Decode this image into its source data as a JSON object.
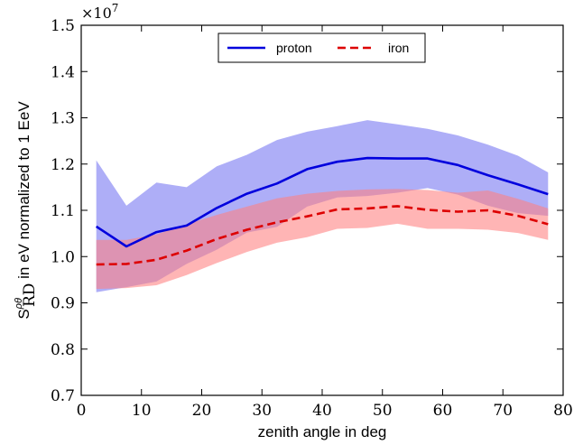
{
  "chart_data": {
    "type": "line",
    "xlabel": "zenith angle in deg",
    "ylabel": {
      "prefix": "S",
      "subscript": "RD",
      "superscript": "ρθ",
      "rest": " in eV normalized to 1 EeV"
    },
    "y_offset_label": "×10^7",
    "xlim": [
      0,
      80
    ],
    "ylim": [
      0.7,
      1.5
    ],
    "xticks": [
      "0",
      "10",
      "20",
      "30",
      "40",
      "50",
      "60",
      "70",
      "80"
    ],
    "yticks": [
      "0.7",
      "0.8",
      "0.9",
      "1.0",
      "1.1",
      "1.2",
      "1.3",
      "1.4",
      "1.5"
    ],
    "legend_position": "top-center",
    "x": [
      2.5,
      7.5,
      12.5,
      17.5,
      22.5,
      27.5,
      32.5,
      37.5,
      42.5,
      47.5,
      52.5,
      57.5,
      62.5,
      67.5,
      72.5,
      77.5
    ],
    "series": [
      {
        "name": "proton",
        "color": "#0000dd",
        "band_color": "#7d7df2",
        "linestyle": "solid",
        "values": [
          1.065,
          1.022,
          1.053,
          1.067,
          1.105,
          1.136,
          1.158,
          1.189,
          1.205,
          1.213,
          1.212,
          1.212,
          1.198,
          1.176,
          1.156,
          1.135
        ],
        "upper": [
          1.208,
          1.11,
          1.16,
          1.15,
          1.195,
          1.22,
          1.252,
          1.27,
          1.282,
          1.295,
          1.286,
          1.276,
          1.262,
          1.242,
          1.218,
          1.182
        ],
        "lower": [
          0.923,
          0.934,
          0.946,
          0.984,
          1.015,
          1.052,
          1.064,
          1.108,
          1.128,
          1.131,
          1.138,
          1.148,
          1.134,
          1.11,
          1.094,
          1.088
        ]
      },
      {
        "name": "iron",
        "color": "#dd0000",
        "band_color": "#ff8080",
        "linestyle": "dashed",
        "values": [
          0.983,
          0.984,
          0.993,
          1.013,
          1.038,
          1.058,
          1.074,
          1.087,
          1.102,
          1.104,
          1.109,
          1.101,
          1.097,
          1.1,
          1.088,
          1.07
        ],
        "upper": [
          1.036,
          1.036,
          1.048,
          1.07,
          1.09,
          1.108,
          1.126,
          1.136,
          1.142,
          1.145,
          1.146,
          1.144,
          1.138,
          1.143,
          1.125,
          1.104
        ],
        "lower": [
          0.93,
          0.932,
          0.938,
          0.96,
          0.986,
          1.01,
          1.03,
          1.042,
          1.06,
          1.062,
          1.071,
          1.06,
          1.06,
          1.058,
          1.051,
          1.036
        ]
      }
    ]
  }
}
